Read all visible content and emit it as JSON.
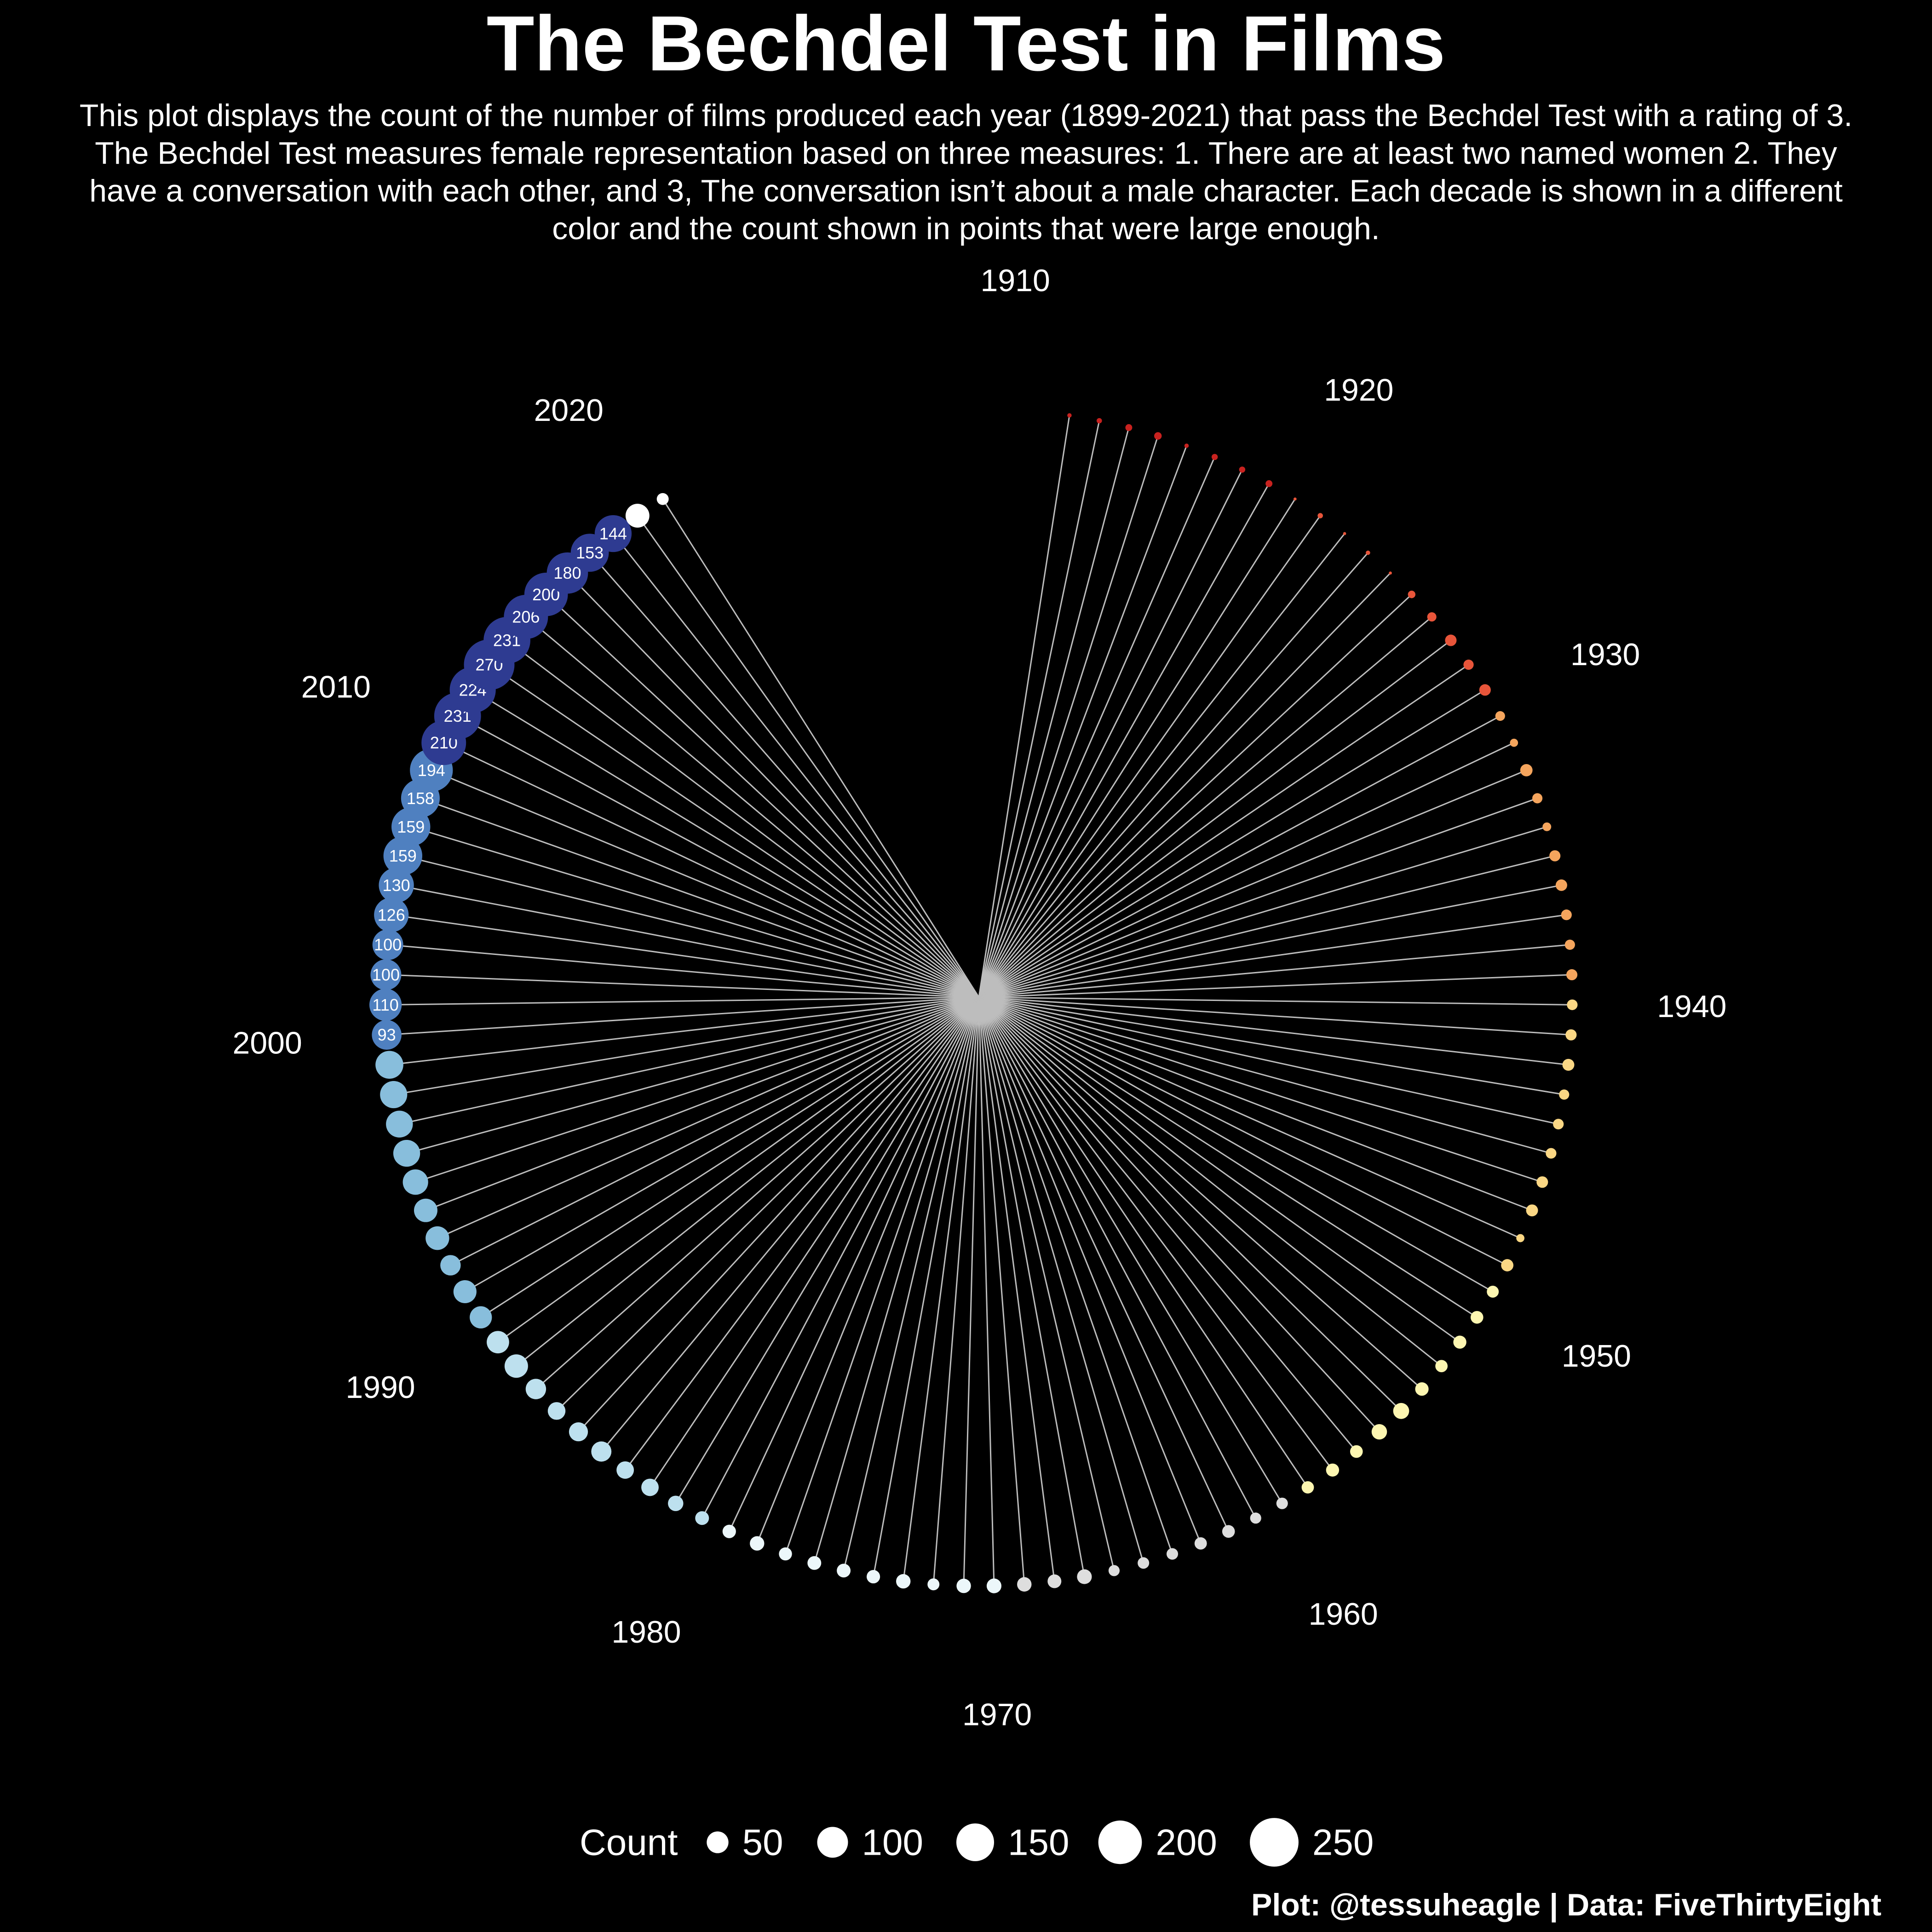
{
  "title": "The Bechdel Test in Films",
  "subtitle": "This plot displays the count of the number of films produced each year (1899-2021) that pass the Bechdel Test with a rating of 3. The Bechdel Test measures female representation based on three measures: 1. There are at least two named women 2. They have a conversation with each other, and 3, The conversation isn’t about a male character. Each decade is shown in a different color and the count shown in points that were large enough.",
  "caption": "Plot: @tessuheagle | Data: FiveThirtyEight",
  "colors": {
    "background": "#000000",
    "text": "#ffffff",
    "spoke": "#bdbdbd",
    "decades": {
      "1910": "#c8221f",
      "1920": "#e8553a",
      "1930": "#f5a55d",
      "1940": "#fbd784",
      "1950": "#fdf6b1",
      "1960": "#dedede",
      "1970": "#ecf7fa",
      "1980": "#bde0ee",
      "1990": "#88bedc",
      "2000": "#4f80c0",
      "2010": "#2e3b91",
      "2020": "#ffffff"
    }
  },
  "chart_data": {
    "type": "scatter",
    "projection": "polar",
    "title": "The Bechdel Test in Films",
    "x_label": "Year",
    "size_label": "Count",
    "decade_labels": [
      "1910",
      "1920",
      "1930",
      "1940",
      "1950",
      "1960",
      "1970",
      "1980",
      "1990",
      "2000",
      "2010",
      "2020"
    ],
    "legend": {
      "title": "Count",
      "position": "bottom",
      "values": [
        50,
        100,
        150,
        200,
        250
      ]
    },
    "points": [
      {
        "year": 1912,
        "count": 2
      },
      {
        "year": 1913,
        "count": 3
      },
      {
        "year": 1914,
        "count": 5
      },
      {
        "year": 1915,
        "count": 6
      },
      {
        "year": 1916,
        "count": 2
      },
      {
        "year": 1917,
        "count": 4
      },
      {
        "year": 1918,
        "count": 4
      },
      {
        "year": 1919,
        "count": 5
      },
      {
        "year": 1920,
        "count": 1
      },
      {
        "year": 1921,
        "count": 3
      },
      {
        "year": 1922,
        "count": 1
      },
      {
        "year": 1923,
        "count": 2
      },
      {
        "year": 1924,
        "count": 1
      },
      {
        "year": 1925,
        "count": 6
      },
      {
        "year": 1926,
        "count": 9
      },
      {
        "year": 1927,
        "count": 14
      },
      {
        "year": 1928,
        "count": 11
      },
      {
        "year": 1929,
        "count": 14
      },
      {
        "year": 1930,
        "count": 10
      },
      {
        "year": 1931,
        "count": 7
      },
      {
        "year": 1932,
        "count": 16
      },
      {
        "year": 1933,
        "count": 11
      },
      {
        "year": 1934,
        "count": 8
      },
      {
        "year": 1935,
        "count": 13
      },
      {
        "year": 1936,
        "count": 14
      },
      {
        "year": 1937,
        "count": 12
      },
      {
        "year": 1938,
        "count": 11
      },
      {
        "year": 1939,
        "count": 13
      },
      {
        "year": 1940,
        "count": 12
      },
      {
        "year": 1941,
        "count": 13
      },
      {
        "year": 1942,
        "count": 15
      },
      {
        "year": 1943,
        "count": 11
      },
      {
        "year": 1944,
        "count": 12
      },
      {
        "year": 1945,
        "count": 12
      },
      {
        "year": 1946,
        "count": 14
      },
      {
        "year": 1947,
        "count": 15
      },
      {
        "year": 1948,
        "count": 7
      },
      {
        "year": 1949,
        "count": 16
      },
      {
        "year": 1950,
        "count": 15
      },
      {
        "year": 1951,
        "count": 17
      },
      {
        "year": 1952,
        "count": 18
      },
      {
        "year": 1953,
        "count": 16
      },
      {
        "year": 1954,
        "count": 19
      },
      {
        "year": 1955,
        "count": 27
      },
      {
        "year": 1956,
        "count": 25
      },
      {
        "year": 1957,
        "count": 17
      },
      {
        "year": 1958,
        "count": 18
      },
      {
        "year": 1959,
        "count": 16
      },
      {
        "year": 1960,
        "count": 14
      },
      {
        "year": 1961,
        "count": 13
      },
      {
        "year": 1962,
        "count": 17
      },
      {
        "year": 1963,
        "count": 16
      },
      {
        "year": 1964,
        "count": 14
      },
      {
        "year": 1965,
        "count": 14
      },
      {
        "year": 1966,
        "count": 13
      },
      {
        "year": 1967,
        "count": 23
      },
      {
        "year": 1968,
        "count": 20
      },
      {
        "year": 1969,
        "count": 22
      },
      {
        "year": 1970,
        "count": 23
      },
      {
        "year": 1971,
        "count": 22
      },
      {
        "year": 1972,
        "count": 15
      },
      {
        "year": 1973,
        "count": 22
      },
      {
        "year": 1974,
        "count": 19
      },
      {
        "year": 1975,
        "count": 20
      },
      {
        "year": 1976,
        "count": 20
      },
      {
        "year": 1977,
        "count": 18
      },
      {
        "year": 1978,
        "count": 22
      },
      {
        "year": 1979,
        "count": 19
      },
      {
        "year": 1980,
        "count": 20
      },
      {
        "year": 1981,
        "count": 25
      },
      {
        "year": 1982,
        "count": 32
      },
      {
        "year": 1983,
        "count": 32
      },
      {
        "year": 1984,
        "count": 43
      },
      {
        "year": 1985,
        "count": 38
      },
      {
        "year": 1986,
        "count": 33
      },
      {
        "year": 1987,
        "count": 44
      },
      {
        "year": 1988,
        "count": 58
      },
      {
        "year": 1989,
        "count": 53
      },
      {
        "year": 1990,
        "count": 52
      },
      {
        "year": 1991,
        "count": 56
      },
      {
        "year": 1992,
        "count": 44
      },
      {
        "year": 1993,
        "count": 59
      },
      {
        "year": 1994,
        "count": 58
      },
      {
        "year": 1995,
        "count": 68
      },
      {
        "year": 1996,
        "count": 76
      },
      {
        "year": 1997,
        "count": 76
      },
      {
        "year": 1998,
        "count": 78
      },
      {
        "year": 1999,
        "count": 82
      },
      {
        "year": 2000,
        "count": 93
      },
      {
        "year": 2001,
        "count": 110
      },
      {
        "year": 2002,
        "count": 100
      },
      {
        "year": 2003,
        "count": 100
      },
      {
        "year": 2004,
        "count": 126
      },
      {
        "year": 2005,
        "count": 130
      },
      {
        "year": 2006,
        "count": 159
      },
      {
        "year": 2007,
        "count": 159
      },
      {
        "year": 2008,
        "count": 158
      },
      {
        "year": 2009,
        "count": 194
      },
      {
        "year": 2010,
        "count": 210
      },
      {
        "year": 2011,
        "count": 231
      },
      {
        "year": 2012,
        "count": 224
      },
      {
        "year": 2013,
        "count": 270
      },
      {
        "year": 2014,
        "count": 231
      },
      {
        "year": 2015,
        "count": 206
      },
      {
        "year": 2016,
        "count": 200
      },
      {
        "year": 2017,
        "count": 180
      },
      {
        "year": 2018,
        "count": 153
      },
      {
        "year": 2019,
        "count": 144
      },
      {
        "year": 2020,
        "count": 60
      },
      {
        "year": 2021,
        "count": 15
      }
    ]
  }
}
